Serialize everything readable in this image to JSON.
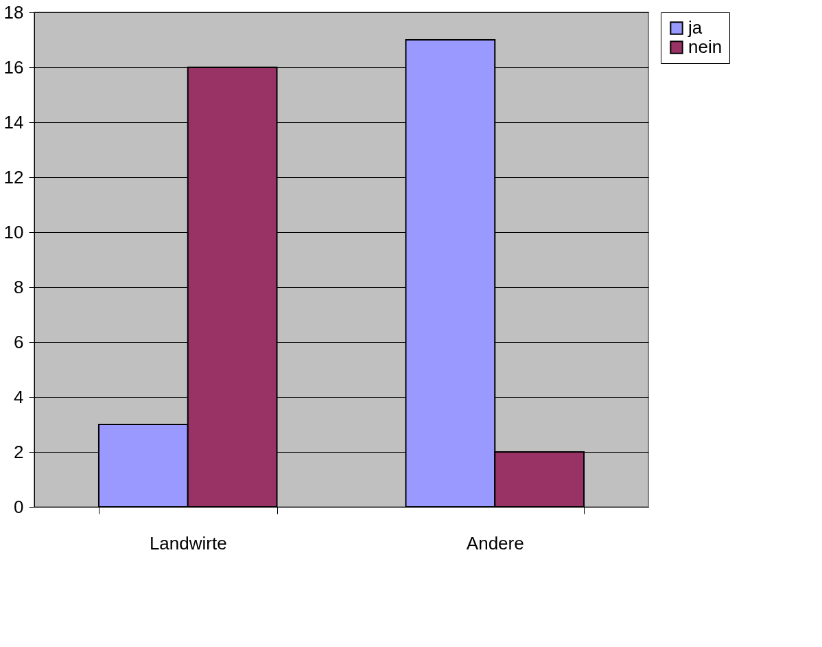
{
  "chart_data": {
    "type": "bar",
    "categories": [
      "Landwirte",
      "Andere"
    ],
    "series": [
      {
        "name": "ja",
        "color": "#9999ff",
        "values": [
          3,
          17
        ]
      },
      {
        "name": "nein",
        "color": "#993366",
        "values": [
          16,
          2
        ]
      }
    ],
    "ylim": [
      0,
      18
    ],
    "yticks": [
      0,
      2,
      4,
      6,
      8,
      10,
      12,
      14,
      16,
      18
    ],
    "grid": "y",
    "legend": "right"
  }
}
